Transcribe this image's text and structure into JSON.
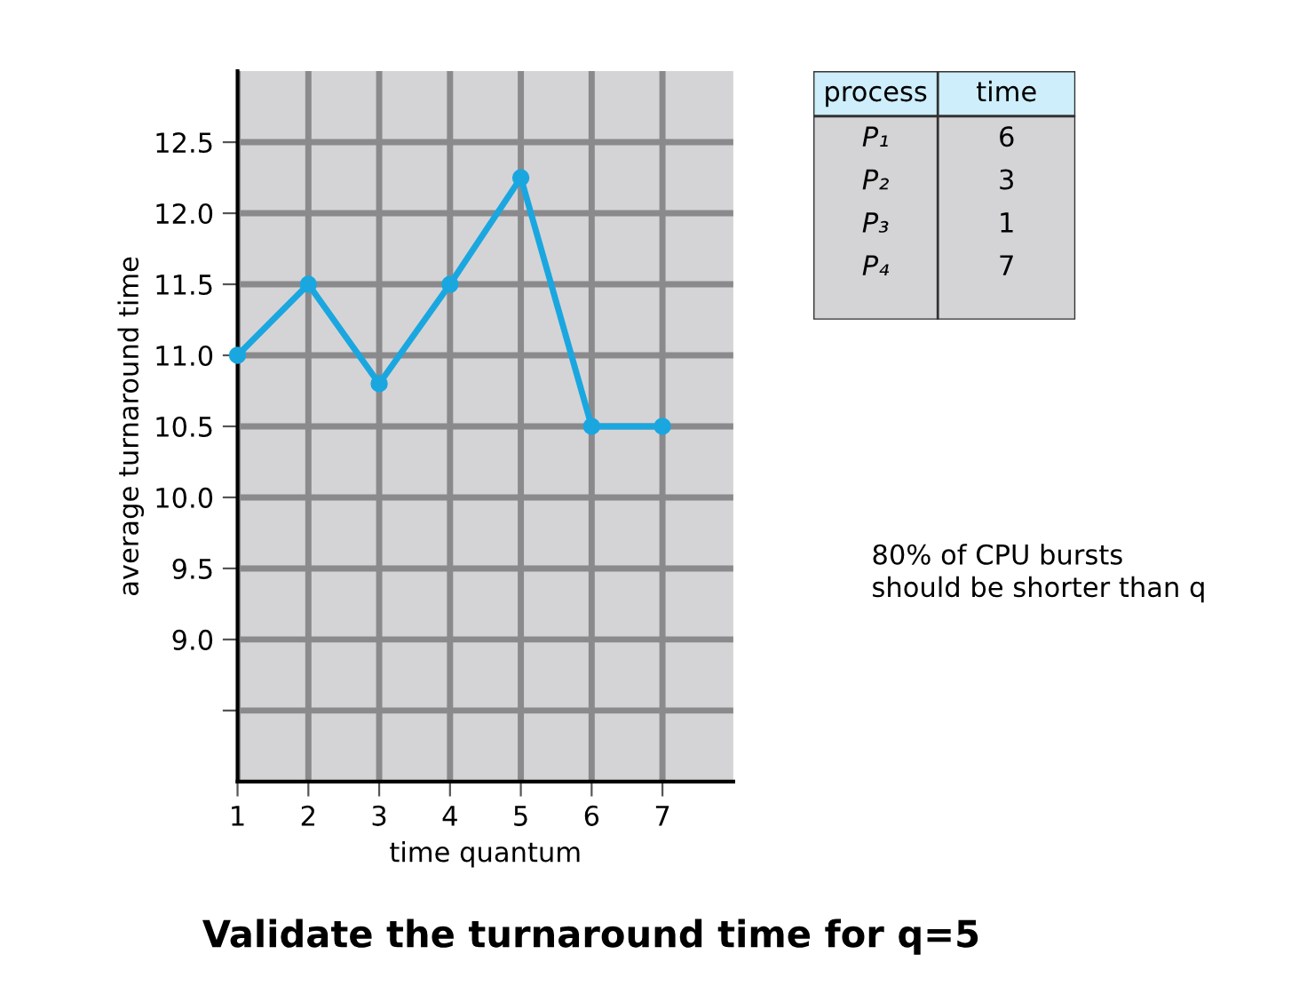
{
  "chart_data": [
    {
      "type": "line",
      "title": "Validate the turnaround time for q=5",
      "xlabel": "time quantum",
      "ylabel": "average turnaround time",
      "x": [
        1,
        2,
        3,
        4,
        5,
        6,
        7
      ],
      "series": [
        {
          "color": "#1aa7e0",
          "values": [
            11.0,
            11.5,
            10.8,
            11.5,
            12.25,
            10.5,
            10.5
          ]
        }
      ],
      "xlim": [
        1,
        8
      ],
      "xticks": [
        1,
        2,
        3,
        4,
        5,
        6,
        7
      ],
      "ylim": [
        8.0,
        13.0
      ],
      "yticks": [
        {
          "value": 8.5,
          "label": null
        },
        {
          "value": 9,
          "label": "9.0"
        },
        9.5,
        {
          "value": 10,
          "label": "10.0"
        },
        10.5,
        {
          "value": 11,
          "label": "11.0"
        },
        11.5,
        {
          "value": 12,
          "label": "12.0"
        },
        12.5
      ],
      "grid": true,
      "marker": "circle",
      "line_style": "solid",
      "legend": false,
      "annotations": [
        "80% of CPU bursts\nshould be shorter than q"
      ]
    },
    {
      "type": "other",
      "annotations": [
        "process",
        "time",
        "P₁",
        "6",
        "P₂",
        "3",
        "P₃",
        "1",
        "P₄",
        "7"
      ]
    }
  ]
}
